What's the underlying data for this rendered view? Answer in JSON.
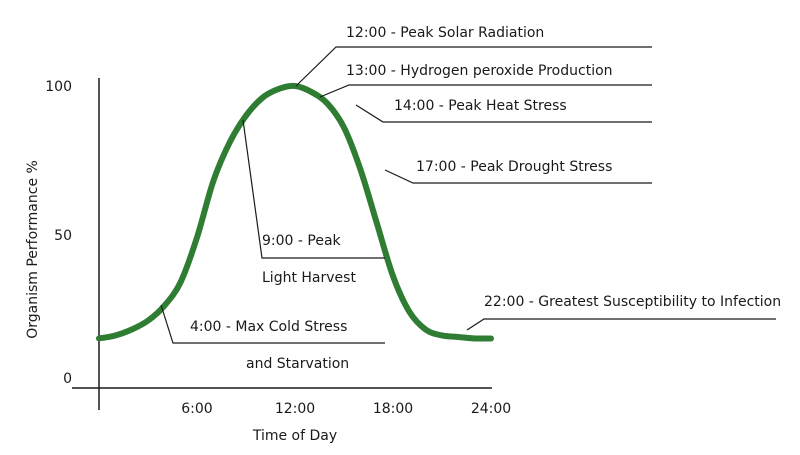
{
  "chart_data": {
    "type": "line",
    "title": "",
    "xlabel": "Time of Day",
    "ylabel": "Organism Performance %",
    "xlim": [
      0,
      24
    ],
    "ylim": [
      0,
      100
    ],
    "x_ticks": [
      {
        "value": 6,
        "label": "6:00"
      },
      {
        "value": 12,
        "label": "12:00"
      },
      {
        "value": 18,
        "label": "18:00"
      },
      {
        "value": 24,
        "label": "24:00"
      }
    ],
    "y_ticks": [
      {
        "value": 0,
        "label": "0"
      },
      {
        "value": 50,
        "label": "50"
      },
      {
        "value": 100,
        "label": "100"
      }
    ],
    "grid": false,
    "series": [
      {
        "name": "Organism Performance",
        "color": "#2e7d32",
        "x": [
          0,
          1,
          2,
          3,
          4,
          5,
          6,
          7,
          8,
          9,
          10,
          11,
          12,
          13,
          14,
          15,
          16,
          17,
          18,
          19,
          20,
          21,
          22,
          23,
          24
        ],
        "y": [
          15,
          16,
          18,
          21,
          26,
          34,
          49,
          68,
          81,
          90,
          96,
          99,
          100,
          98,
          94,
          86,
          72,
          54,
          36,
          24,
          18,
          16,
          15.5,
          15,
          15
        ]
      }
    ],
    "annotations": [
      {
        "id": "solar",
        "x": 12,
        "y": 100,
        "lines": [
          "12:00 - Peak Solar Radiation"
        ]
      },
      {
        "id": "h2o2",
        "x": 13,
        "y": 96,
        "lines": [
          "13:00 - Hydrogen peroxide Production"
        ]
      },
      {
        "id": "heat",
        "x": 14.5,
        "y": 88,
        "lines": [
          "14:00 - Peak Heat Stress"
        ]
      },
      {
        "id": "drought",
        "x": 17,
        "y": 70,
        "lines": [
          "17:00 - Peak Drought Stress"
        ]
      },
      {
        "id": "light",
        "x": 9,
        "y": 90,
        "lines": [
          "9:00 - Peak",
          "Light Harvest"
        ]
      },
      {
        "id": "infection",
        "x": 22,
        "y": 16,
        "lines": [
          "22:00 - Greatest Susceptibility to Infection"
        ]
      },
      {
        "id": "cold",
        "x": 4,
        "y": 26,
        "lines": [
          "4:00 - Max Cold Stress",
          "and Starvation"
        ]
      }
    ]
  }
}
